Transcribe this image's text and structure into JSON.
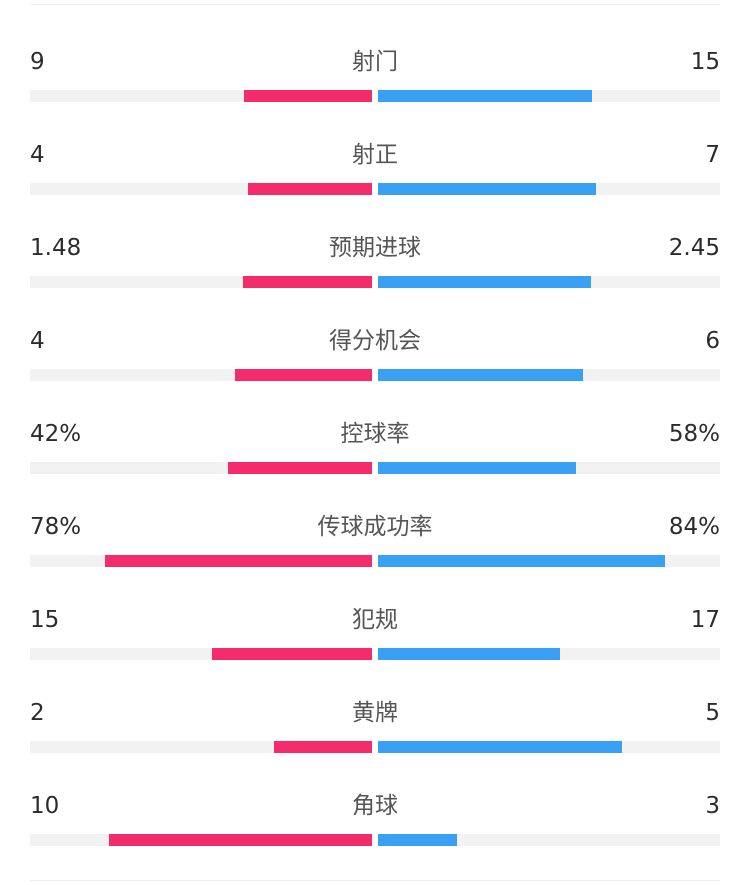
{
  "colors": {
    "home": "#f52c6b",
    "away": "#3aa0f3",
    "track": "#f2f2f2",
    "text": "#2c2c2c",
    "label": "#555555"
  },
  "stats": [
    {
      "label": "射门",
      "home": "9",
      "away": "15",
      "home_ratio": 0.375,
      "away_ratio": 0.625
    },
    {
      "label": "射正",
      "home": "4",
      "away": "7",
      "home_ratio": 0.364,
      "away_ratio": 0.636
    },
    {
      "label": "预期进球",
      "home": "1.48",
      "away": "2.45",
      "home_ratio": 0.377,
      "away_ratio": 0.623
    },
    {
      "label": "得分机会",
      "home": "4",
      "away": "6",
      "home_ratio": 0.4,
      "away_ratio": 0.6
    },
    {
      "label": "控球率",
      "home": "42%",
      "away": "58%",
      "home_ratio": 0.42,
      "away_ratio": 0.58
    },
    {
      "label": "传球成功率",
      "home": "78%",
      "away": "84%",
      "home_ratio": 0.78,
      "away_ratio": 0.84
    },
    {
      "label": "犯规",
      "home": "15",
      "away": "17",
      "home_ratio": 0.469,
      "away_ratio": 0.531
    },
    {
      "label": "黄牌",
      "home": "2",
      "away": "5",
      "home_ratio": 0.286,
      "away_ratio": 0.714
    },
    {
      "label": "角球",
      "home": "10",
      "away": "3",
      "home_ratio": 0.769,
      "away_ratio": 0.231
    }
  ]
}
